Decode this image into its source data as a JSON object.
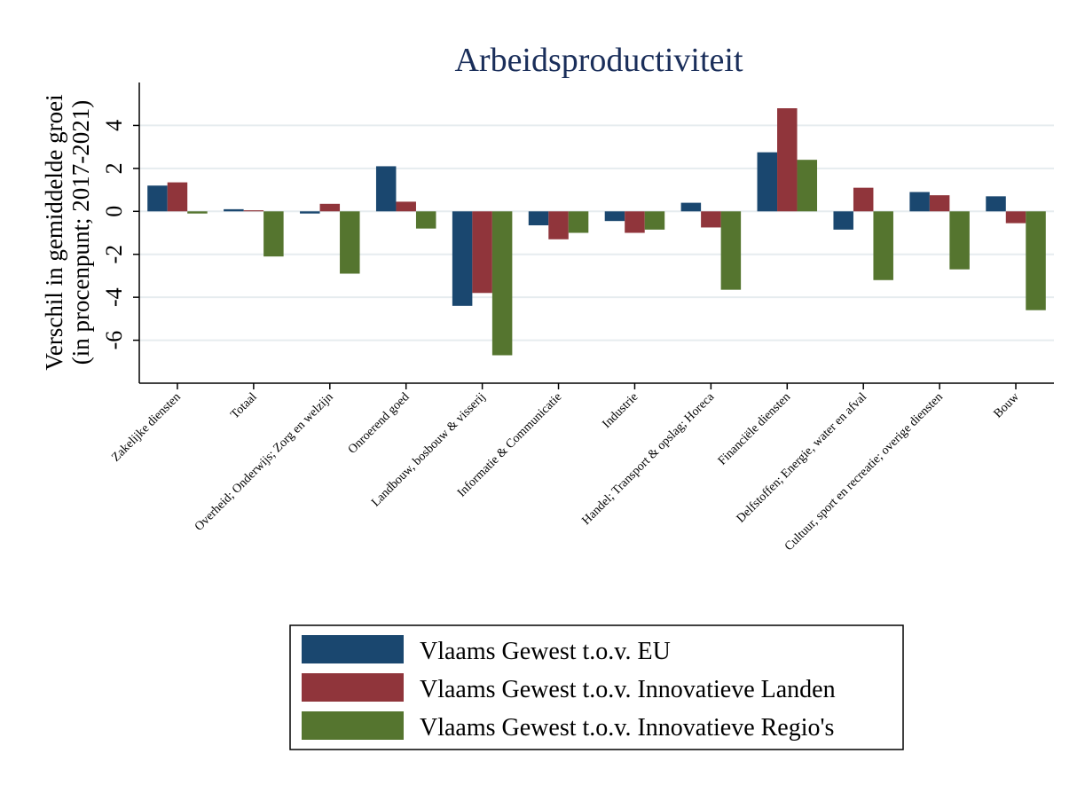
{
  "chart_data": {
    "type": "bar",
    "title": "Arbeidsproductiviteit",
    "y_label": [
      "Verschil in gemiddelde groei",
      "(in procenpunt; 2017-2021)"
    ],
    "categories": [
      "Zakelijke diensten",
      "Totaal",
      "Overheid; Onderwijs; Zorg en welzijn",
      "Onroerend goed",
      "Landbouw, bosbouw & visserij",
      "Informatie & Communicatie",
      "Industrie",
      "Handel; Transport & opslag; Horeca",
      "Financiële diensten",
      "Delfstoffen; Energie, water en afval",
      "Cultuur, sport en recreatie; overige diensten",
      "Bouw"
    ],
    "series": [
      {
        "name": "Vlaams Gewest t.o.v. EU",
        "color": "#1a476f",
        "values": [
          1.2,
          0.1,
          -0.1,
          2.1,
          -4.4,
          -0.65,
          -0.45,
          0.4,
          2.75,
          -0.85,
          0.9,
          0.7
        ]
      },
      {
        "name": "Vlaams Gewest t.o.v. Innovatieve Landen",
        "color": "#90353b",
        "values": [
          1.35,
          0.05,
          0.35,
          0.45,
          -3.8,
          -1.3,
          -1.0,
          -0.75,
          4.8,
          1.1,
          0.75,
          -0.55
        ]
      },
      {
        "name": "Vlaams Gewest t.o.v. Innovatieve Regio's",
        "color": "#55752f",
        "values": [
          -0.1,
          -2.1,
          -2.9,
          -0.8,
          -6.7,
          -1.0,
          -0.85,
          -3.65,
          2.4,
          -3.2,
          -2.7,
          -4.6
        ]
      }
    ],
    "ylim": [
      -8,
      6
    ],
    "yticks": [
      -6,
      -4,
      -2,
      0,
      2,
      4
    ],
    "grid": true
  }
}
